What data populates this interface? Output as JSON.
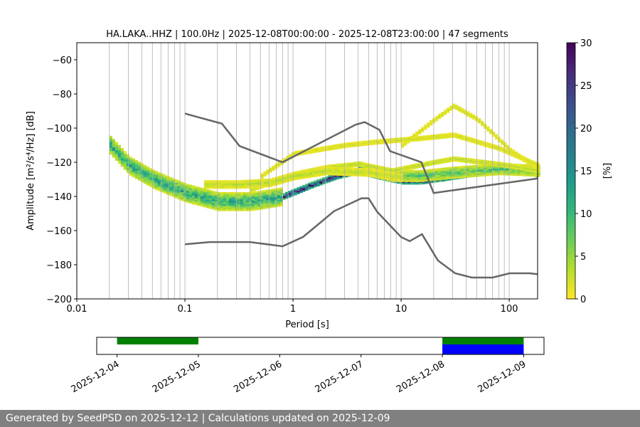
{
  "chart_data": [
    {
      "type": "heatmap",
      "title": "HA.LAKA..HHZ | 100.0Hz | 2025-12-08T00:00:00 - 2025-12-08T23:00:00 | 47 segments",
      "xlabel": "Period [s]",
      "ylabel": "Amplitude [m²/s⁴/Hz] [dB]",
      "xscale": "log",
      "xlim": [
        0.01,
        183
      ],
      "ylim": [
        -200,
        -50
      ],
      "xticks": [
        0.01,
        0.1,
        1,
        10,
        100
      ],
      "xtick_labels": [
        "0.01",
        "0.1",
        "1",
        "10",
        "100"
      ],
      "yticks": [
        -200,
        -180,
        -160,
        -140,
        -120,
        -100,
        -80,
        -60
      ],
      "ytick_labels": [
        "−200",
        "−180",
        "−160",
        "−140",
        "−120",
        "−100",
        "−80",
        "−60"
      ],
      "grid": "vertical log gridlines",
      "colorbar": {
        "label": "[%]",
        "range": [
          0,
          30
        ],
        "ticks": [
          0,
          5,
          10,
          15,
          20,
          25,
          30
        ],
        "colormap": "viridis_r"
      },
      "noise_models": {
        "color": "#666666",
        "high": [
          [
            0.1,
            -91.5
          ],
          [
            0.22,
            -97.4
          ],
          [
            0.32,
            -110.5
          ],
          [
            0.8,
            -120
          ],
          [
            3.8,
            -98
          ],
          [
            4.6,
            -96.5
          ],
          [
            6.3,
            -101
          ],
          [
            7.9,
            -113.5
          ],
          [
            15.4,
            -120
          ],
          [
            20,
            -138
          ],
          [
            183,
            -129.5
          ]
        ],
        "low": [
          [
            0.1,
            -168
          ],
          [
            0.17,
            -166.7
          ],
          [
            0.4,
            -166.7
          ],
          [
            0.8,
            -169.2
          ],
          [
            1.24,
            -163.7
          ],
          [
            2.4,
            -148.6
          ],
          [
            4.3,
            -141.1
          ],
          [
            5,
            -141.1
          ],
          [
            6,
            -149
          ],
          [
            10,
            -163.8
          ],
          [
            12,
            -166.2
          ],
          [
            15.6,
            -162.1
          ],
          [
            21.9,
            -177.5
          ],
          [
            31.6,
            -185
          ],
          [
            45,
            -187.5
          ],
          [
            70,
            -187.5
          ],
          [
            101,
            -185
          ],
          [
            154,
            -185
          ],
          [
            183,
            -185.5
          ]
        ]
      },
      "density_ridges": [
        {
          "percent": 28,
          "spread_db": 1.5,
          "points": [
            [
              0.8,
              -140
            ],
            [
              1.5,
              -133
            ],
            [
              2.5,
              -128
            ],
            [
              4,
              -125
            ],
            [
              6,
              -128
            ],
            [
              10,
              -131
            ],
            [
              15,
              -131
            ],
            [
              25,
              -129
            ],
            [
              50,
              -126
            ],
            [
              80,
              -123
            ],
            [
              120,
              -124
            ],
            [
              183,
              -127
            ]
          ]
        },
        {
          "percent": 12,
          "spread_db": 5,
          "points": [
            [
              0.02,
              -110
            ],
            [
              0.03,
              -122
            ],
            [
              0.05,
              -130
            ],
            [
              0.1,
              -138
            ],
            [
              0.2,
              -143
            ],
            [
              0.4,
              -143
            ],
            [
              0.8,
              -140
            ]
          ]
        },
        {
          "percent": 8,
          "spread_db": 3,
          "points": [
            [
              4,
              -123
            ],
            [
              8,
              -128
            ],
            [
              15,
              -128
            ],
            [
              30,
              -126
            ],
            [
              80,
              -124
            ],
            [
              183,
              -125
            ]
          ]
        },
        {
          "percent": 3,
          "spread_db": 1,
          "points": [
            [
              0.4,
              -136
            ],
            [
              1,
              -127
            ],
            [
              2,
              -123
            ],
            [
              4,
              -121
            ],
            [
              8,
              -125
            ],
            [
              20,
              -120
            ],
            [
              30,
              -118
            ],
            [
              100,
              -122
            ],
            [
              183,
              -125
            ]
          ]
        },
        {
          "percent": 2,
          "spread_db": 1,
          "points": [
            [
              10,
              -110
            ],
            [
              20,
              -95
            ],
            [
              30,
              -87
            ],
            [
              50,
              -95
            ],
            [
              100,
              -113
            ],
            [
              183,
              -124
            ]
          ]
        },
        {
          "percent": 2,
          "spread_db": 1,
          "points": [
            [
              0.5,
              -128
            ],
            [
              1,
              -115
            ],
            [
              3,
              -110
            ],
            [
              6,
              -108
            ],
            [
              15,
              -106
            ],
            [
              30,
              -104
            ],
            [
              80,
              -112
            ],
            [
              183,
              -122
            ]
          ]
        },
        {
          "percent": 3,
          "spread_db": 2,
          "points": [
            [
              0.15,
              -133
            ],
            [
              0.3,
              -133
            ],
            [
              0.6,
              -132
            ],
            [
              1,
              -128
            ],
            [
              2,
              -125
            ],
            [
              5,
              -126
            ],
            [
              10,
              -129
            ]
          ]
        }
      ]
    },
    {
      "type": "timeline",
      "xticks": [
        "2025-12-04",
        "2025-12-05",
        "2025-12-06",
        "2025-12-07",
        "2025-12-08",
        "2025-12-09"
      ],
      "xlim": [
        "2025-12-03T18:00",
        "2025-12-09T06:00"
      ],
      "bars": [
        {
          "start": "2025-12-04",
          "end": "2025-12-05",
          "row": "top",
          "color": "#008000"
        },
        {
          "start": "2025-12-08",
          "end": "2025-12-09",
          "row": "top",
          "color": "#008000"
        },
        {
          "start": "2025-12-08",
          "end": "2025-12-09",
          "row": "bottom",
          "color": "#0000ff"
        }
      ]
    }
  ],
  "footer": "Generated by SeedPSD on 2025-12-12 | Calculations updated on 2025-12-09"
}
